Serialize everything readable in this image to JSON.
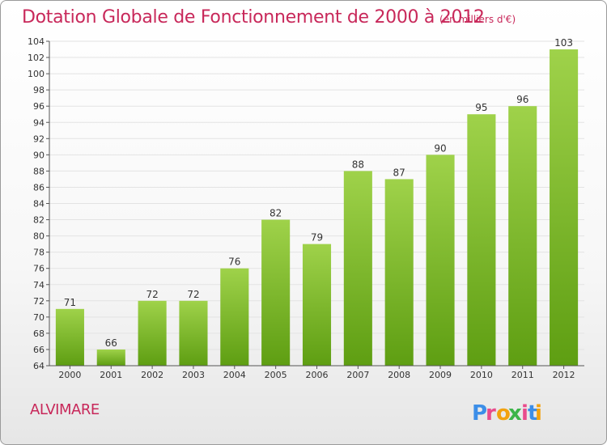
{
  "header": {
    "title": "Dotation Globale de Fonctionnement de 2000 à 2012",
    "unit": "(en milliers d'€)"
  },
  "commune": "ALVIMARE",
  "brand": {
    "letters": [
      "P",
      "r",
      "o",
      "x",
      "i",
      "t",
      "i"
    ],
    "colors": [
      "#3c8ee8",
      "#e94b8c",
      "#f2a20f",
      "#3cb54a",
      "#e94b8c",
      "#3c8ee8",
      "#f2a20f"
    ]
  },
  "chart_data": {
    "type": "bar",
    "categories": [
      "2000",
      "2001",
      "2002",
      "2003",
      "2004",
      "2005",
      "2006",
      "2007",
      "2008",
      "2009",
      "2010",
      "2011",
      "2012"
    ],
    "values": [
      71,
      66,
      72,
      72,
      76,
      82,
      79,
      88,
      87,
      90,
      95,
      96,
      103
    ],
    "data_labels": [
      "71",
      "66",
      "72",
      "72",
      "76",
      "82",
      "79",
      "88",
      "87",
      "90",
      "95",
      "96",
      "103"
    ],
    "title": "Dotation Globale de Fonctionnement de 2000 à 2012",
    "xlabel": "",
    "ylabel": "",
    "ylim": [
      64,
      104
    ],
    "yticks": [
      64,
      66,
      68,
      70,
      72,
      74,
      76,
      78,
      80,
      82,
      84,
      86,
      88,
      90,
      92,
      94,
      96,
      98,
      100,
      102,
      104
    ],
    "grid": true,
    "colors": {
      "bar_top": "#9fd24a",
      "bar_bottom": "#5e9e12",
      "axis": "#555555",
      "grid": "#e3e3e3"
    }
  }
}
